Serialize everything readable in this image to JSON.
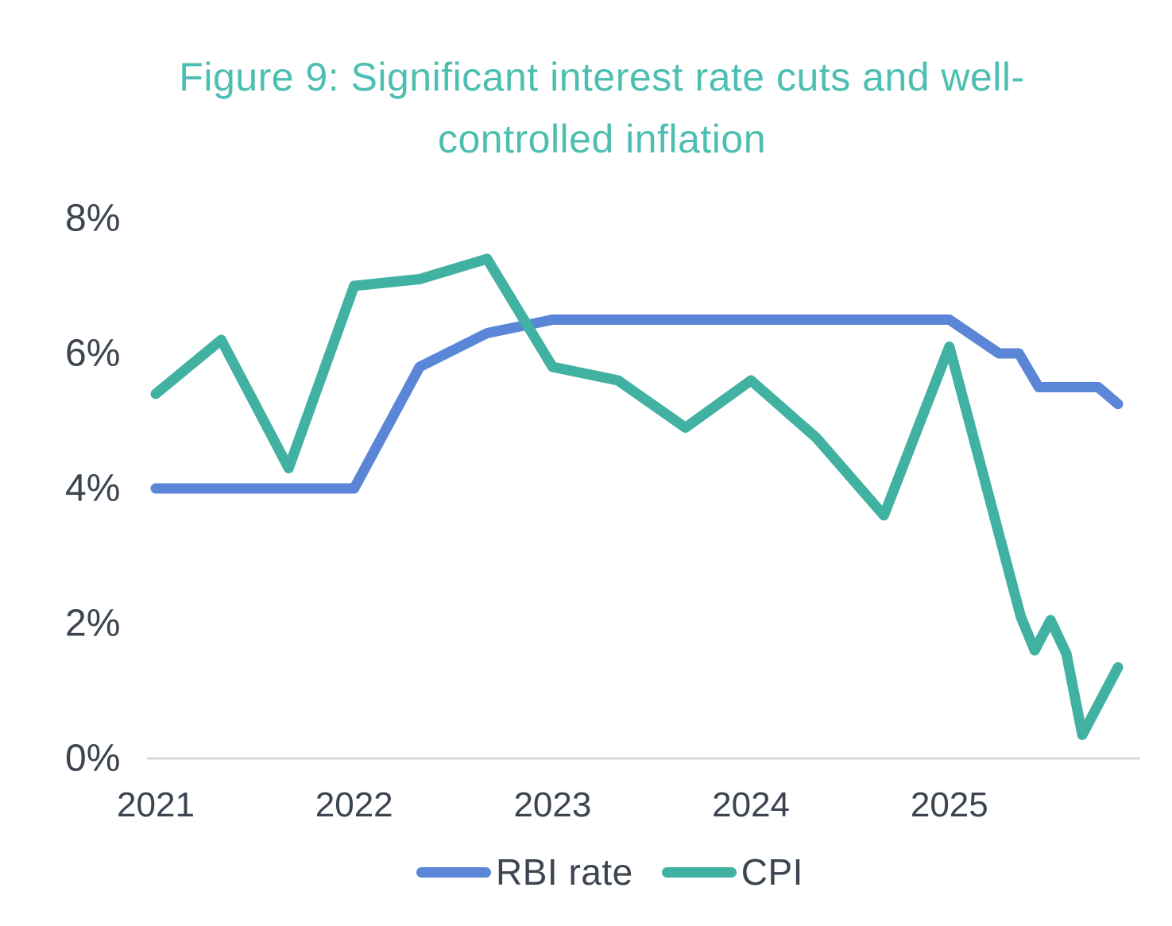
{
  "page": {
    "background": "#ffffff"
  },
  "chart_data": {
    "type": "line",
    "title": "Figure 9: Significant interest rate cuts and well-controlled inflation",
    "title_lines": [
      "Figure 9: Significant interest rate cuts and well-",
      "controlled inflation"
    ],
    "colors": {
      "title": "#4dbfb1",
      "tick_labels": "#3c4450",
      "axis_line": "#d8d8d8"
    },
    "xlabel": "",
    "ylabel": "",
    "grid": "baseline only (0% axis line), no other gridlines",
    "legend_position": "bottom-center",
    "x_axis": {
      "ticks": [
        {
          "label": "2021",
          "value": 2021
        },
        {
          "label": "2022",
          "value": 2022
        },
        {
          "label": "2023",
          "value": 2023
        },
        {
          "label": "2024",
          "value": 2024
        },
        {
          "label": "2025",
          "value": 2025
        }
      ],
      "range": [
        2020.95,
        2026.0
      ]
    },
    "y_axis": {
      "unit": "%",
      "ticks": [
        {
          "label": "0%",
          "value": 0
        },
        {
          "label": "2%",
          "value": 2
        },
        {
          "label": "4%",
          "value": 4
        },
        {
          "label": "6%",
          "value": 6
        },
        {
          "label": "8%",
          "value": 8
        }
      ],
      "range": [
        0,
        8.8
      ]
    },
    "series": [
      {
        "name": "RBI rate",
        "color": "#5b86d8",
        "points": [
          [
            2021.0,
            4.0
          ],
          [
            2022.0,
            4.0
          ],
          [
            2022.33,
            5.8
          ],
          [
            2022.67,
            6.3
          ],
          [
            2023.0,
            6.5
          ],
          [
            2025.0,
            6.5
          ],
          [
            2025.25,
            6.0
          ],
          [
            2025.35,
            6.0
          ],
          [
            2025.45,
            5.5
          ],
          [
            2025.75,
            5.5
          ],
          [
            2025.85,
            5.25
          ]
        ]
      },
      {
        "name": "CPI",
        "color": "#41b2a2",
        "points": [
          [
            2021.0,
            5.4
          ],
          [
            2021.33,
            6.2
          ],
          [
            2021.67,
            4.3
          ],
          [
            2022.0,
            7.0
          ],
          [
            2022.33,
            7.1
          ],
          [
            2022.67,
            7.4
          ],
          [
            2023.0,
            5.8
          ],
          [
            2023.33,
            5.6
          ],
          [
            2023.67,
            4.9
          ],
          [
            2024.0,
            5.6
          ],
          [
            2024.33,
            4.75
          ],
          [
            2024.67,
            3.6
          ],
          [
            2025.0,
            6.1
          ],
          [
            2025.36,
            2.1
          ],
          [
            2025.43,
            1.6
          ],
          [
            2025.51,
            2.05
          ],
          [
            2025.59,
            1.55
          ],
          [
            2025.67,
            0.35
          ],
          [
            2025.85,
            1.35
          ]
        ]
      }
    ]
  }
}
